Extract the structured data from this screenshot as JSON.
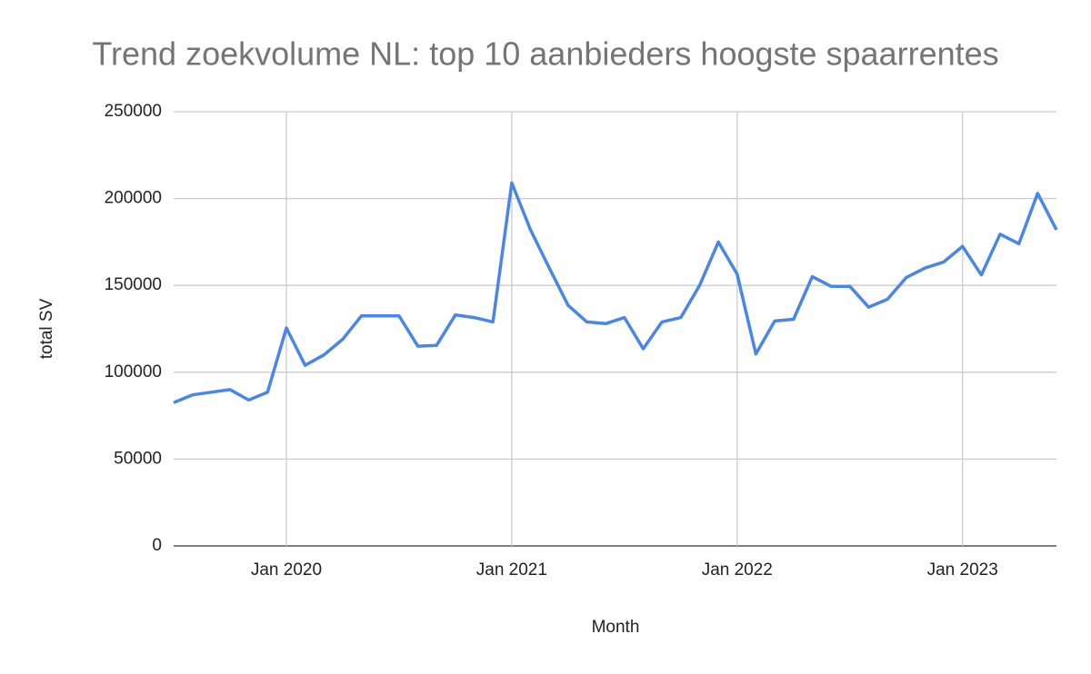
{
  "chart_data": {
    "type": "line",
    "title": "Trend zoekvolume NL: top 10 aanbieders hoogste spaarrentes",
    "x_label": "Month",
    "y_label": "total SV",
    "x": [
      "2019-07",
      "2019-08",
      "2019-09",
      "2019-10",
      "2019-11",
      "2019-12",
      "2020-01",
      "2020-02",
      "2020-03",
      "2020-04",
      "2020-05",
      "2020-06",
      "2020-07",
      "2020-08",
      "2020-09",
      "2020-10",
      "2020-11",
      "2020-12",
      "2021-01",
      "2021-02",
      "2021-03",
      "2021-04",
      "2021-05",
      "2021-06",
      "2021-07",
      "2021-08",
      "2021-09",
      "2021-10",
      "2021-11",
      "2021-12",
      "2022-01",
      "2022-02",
      "2022-03",
      "2022-04",
      "2022-05",
      "2022-06",
      "2022-07",
      "2022-08",
      "2022-09",
      "2022-10",
      "2022-11",
      "2022-12",
      "2023-01",
      "2023-02",
      "2023-03",
      "2023-04",
      "2023-05",
      "2023-06"
    ],
    "series": [
      {
        "name": "total SV",
        "color": "#4a86e8",
        "values": [
          82500,
          87000,
          88500,
          90000,
          84000,
          88500,
          125500,
          104000,
          110000,
          119000,
          132500,
          132500,
          132500,
          115000,
          115500,
          133000,
          131500,
          129000,
          209000,
          182000,
          160000,
          138500,
          129000,
          128000,
          131500,
          113500,
          129000,
          131500,
          150000,
          175000,
          156500,
          110500,
          129500,
          130500,
          155000,
          149500,
          149500,
          137500,
          142000,
          154500,
          160000,
          163500,
          172500,
          156000,
          179500,
          174000,
          203000,
          182000
        ]
      }
    ],
    "xlim": [
      "2019-07",
      "2023-06"
    ],
    "xticks": [
      {
        "value": "2020-01",
        "label": "Jan 2020"
      },
      {
        "value": "2021-01",
        "label": "Jan 2021"
      },
      {
        "value": "2022-01",
        "label": "Jan 2022"
      },
      {
        "value": "2023-01",
        "label": "Jan 2023"
      }
    ],
    "ylim": [
      0,
      250000
    ],
    "yticks": [
      0,
      50000,
      100000,
      150000,
      200000,
      250000
    ],
    "grid": true
  }
}
